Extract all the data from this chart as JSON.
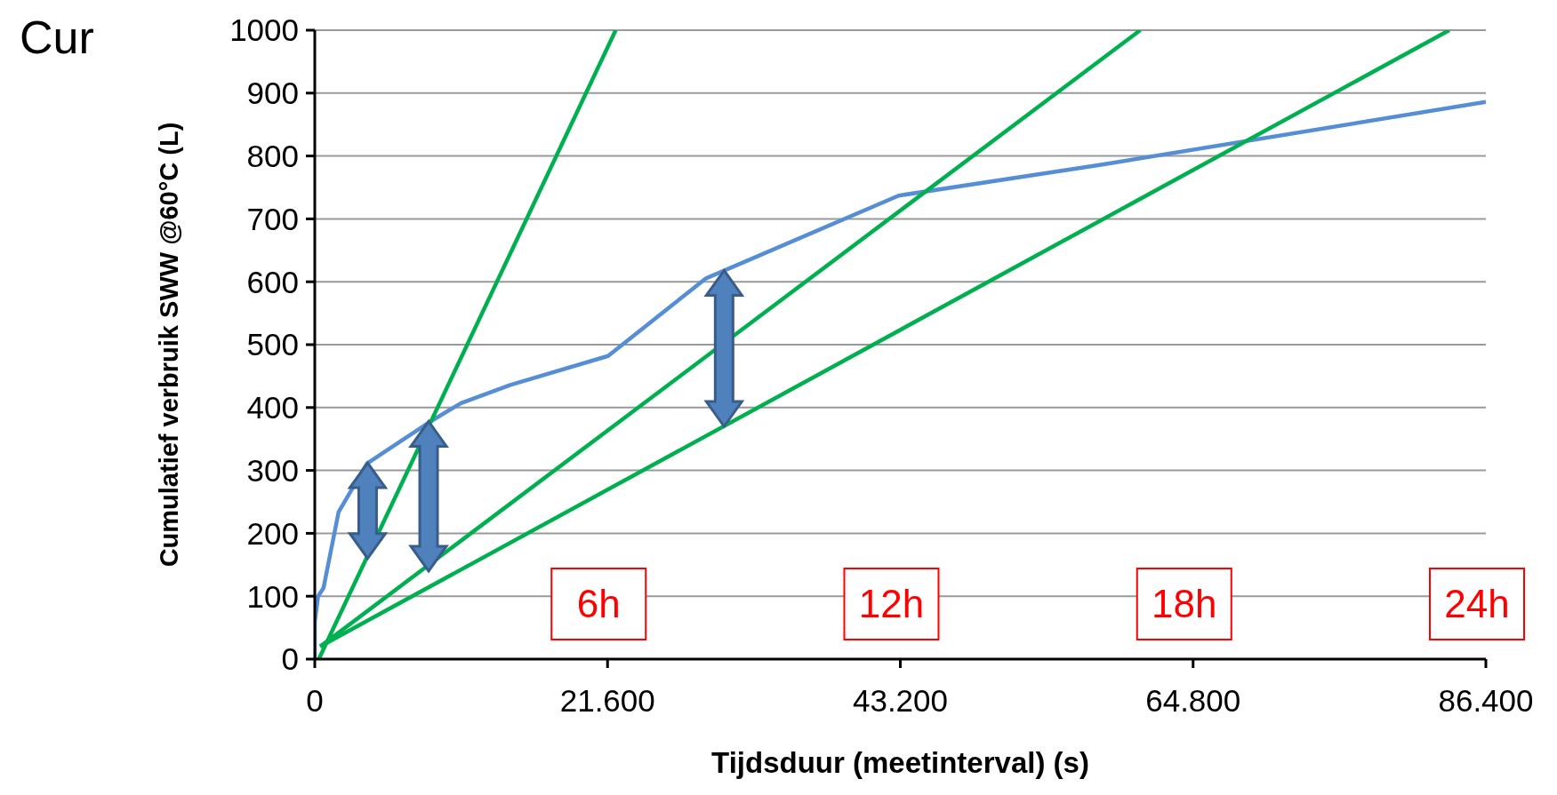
{
  "chart_data": {
    "type": "line",
    "title": "Cur",
    "xlabel": "Tijdsduur (meetinterval) (s)",
    "ylabel": "Cumulatief verbruik  SWW @60°C (L)",
    "xlim": [
      0,
      86400
    ],
    "xticks": [
      0,
      {
        "value": 21600,
        "label": "21.600"
      },
      {
        "value": 43200,
        "label": "43.200"
      },
      {
        "value": 64800,
        "label": "64.800"
      },
      {
        "value": 86400,
        "label": "86.400"
      }
    ],
    "ylim": [
      0,
      1000
    ],
    "yticks": [
      0,
      100,
      200,
      300,
      400,
      500,
      600,
      700,
      800,
      900,
      1000
    ],
    "grid": "y",
    "marker": "none",
    "line_style": "solid",
    "series": [
      {
        "color": "#558ed5",
        "x": [
          0,
          0,
          243,
          643,
          1758,
          3851,
          8400,
          10790,
          14430,
          21640,
          28830,
          43080,
          58000,
          86400
        ],
        "values": [
          0,
          59,
          100,
          113,
          234,
          311,
          376,
          407,
          436,
          482,
          605,
          737,
          786,
          886
        ]
      },
      {
        "color": "#00b050",
        "x": [
          300,
          22200
        ],
        "values": [
          0,
          1000
        ]
      },
      {
        "color": "#00b050",
        "x": [
          400,
          60900
        ],
        "values": [
          20,
          1000
        ]
      },
      {
        "color": "#00b050",
        "x": [
          400,
          83700
        ],
        "values": [
          20,
          1000
        ]
      }
    ],
    "annotations": [
      "6h",
      "12h",
      "18h",
      "24h"
    ]
  }
}
